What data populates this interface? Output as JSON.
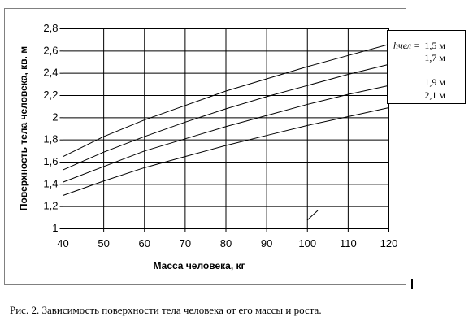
{
  "chart_data": {
    "type": "line",
    "caption": "Рис. 2. Зависимость поверхности тела человека от его массы и роста.",
    "xlabel": "Масса человека, кг",
    "ylabel": "Поверхность тела человека, кв. м",
    "legend_prefix": "hчел =",
    "x": [
      40,
      50,
      60,
      70,
      80,
      90,
      100,
      110,
      120
    ],
    "series": [
      {
        "name": "1,5 м",
        "color": "#000000",
        "values": [
          1.65,
          1.83,
          1.98,
          2.11,
          2.24,
          2.35,
          2.46,
          2.56,
          2.66
        ]
      },
      {
        "name": "1,7 м",
        "color": "#000000",
        "values": [
          1.53,
          1.69,
          1.83,
          1.96,
          2.08,
          2.19,
          2.29,
          2.39,
          2.48
        ]
      },
      {
        "name": "1,9 м",
        "color": "#000000",
        "values": [
          1.42,
          1.56,
          1.7,
          1.81,
          1.92,
          2.02,
          2.12,
          2.21,
          2.29
        ]
      },
      {
        "name": "2,1 м",
        "color": "#000000",
        "values": [
          1.3,
          1.43,
          1.55,
          1.65,
          1.75,
          1.84,
          1.93,
          2.01,
          2.09
        ]
      }
    ],
    "xlim": [
      40,
      120
    ],
    "xticks": [
      40,
      50,
      60,
      70,
      80,
      90,
      100,
      110,
      120
    ],
    "ylim": [
      1,
      2.8
    ],
    "yticks": [
      1,
      {
        "value": 1.2,
        "label": "1,2"
      },
      {
        "value": 1.4,
        "label": "1,4"
      },
      {
        "value": 1.6,
        "label": "1,6"
      },
      {
        "value": 1.8,
        "label": "1,8"
      },
      2,
      {
        "value": 2.2,
        "label": "2,2"
      },
      {
        "value": 2.4,
        "label": "2,4"
      },
      {
        "value": 2.6,
        "label": "2,6"
      },
      {
        "value": 2.8,
        "label": "2,8"
      }
    ],
    "grid": true
  }
}
